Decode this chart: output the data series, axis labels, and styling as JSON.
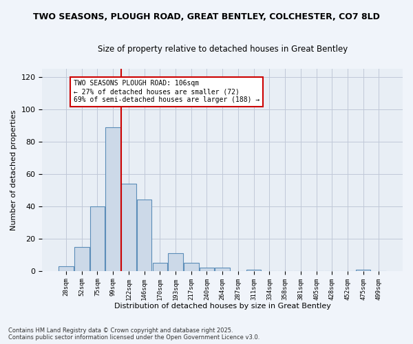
{
  "title1": "TWO SEASONS, PLOUGH ROAD, GREAT BENTLEY, COLCHESTER, CO7 8LD",
  "title2": "Size of property relative to detached houses in Great Bentley",
  "xlabel": "Distribution of detached houses by size in Great Bentley",
  "ylabel": "Number of detached properties",
  "bar_color": "#ccd9e8",
  "bar_edge_color": "#5b8db8",
  "background_color": "#e8eef5",
  "fig_background": "#f0f4fa",
  "bin_labels": [
    "28sqm",
    "52sqm",
    "75sqm",
    "99sqm",
    "122sqm",
    "146sqm",
    "170sqm",
    "193sqm",
    "217sqm",
    "240sqm",
    "264sqm",
    "287sqm",
    "311sqm",
    "334sqm",
    "358sqm",
    "381sqm",
    "405sqm",
    "428sqm",
    "452sqm",
    "475sqm",
    "499sqm"
  ],
  "bar_values": [
    3,
    15,
    40,
    89,
    54,
    44,
    5,
    11,
    5,
    2,
    2,
    0,
    1,
    0,
    0,
    0,
    0,
    0,
    0,
    1,
    0
  ],
  "ylim": [
    0,
    125
  ],
  "yticks": [
    0,
    20,
    40,
    60,
    80,
    100,
    120
  ],
  "vline_index": 3.5,
  "vline_color": "#cc0000",
  "annotation_text": "TWO SEASONS PLOUGH ROAD: 106sqm\n← 27% of detached houses are smaller (72)\n69% of semi-detached houses are larger (188) →",
  "annotation_box_color": "#ffffff",
  "annotation_box_edge": "#cc0000",
  "footnote1": "Contains HM Land Registry data © Crown copyright and database right 2025.",
  "footnote2": "Contains public sector information licensed under the Open Government Licence v3.0.",
  "grid_color": "#c0c8d8"
}
